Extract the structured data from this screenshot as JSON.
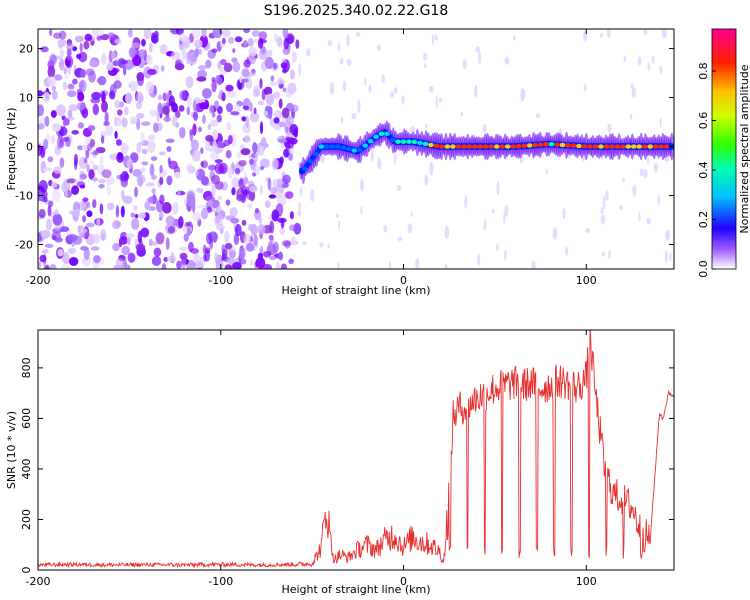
{
  "title": "S196.2025.340.02.22.G18",
  "chart_data": [
    {
      "type": "heatmap",
      "name": "spectrogram",
      "xlabel": "Height of straight line (km)",
      "ylabel": "Frequency (Hz)",
      "xlim": [
        -200,
        148
      ],
      "ylim": [
        -25,
        24
      ],
      "xticks": [
        -200,
        -100,
        0,
        100
      ],
      "xtick_labels": [
        "-200",
        "-100",
        "0",
        "100"
      ],
      "yticks": [
        20,
        10,
        0,
        -10,
        -20
      ],
      "ytick_labels": [
        "20",
        "10",
        "0",
        "-10",
        "-20"
      ],
      "colorbar": {
        "label": "Normalized spectral amplitude",
        "range": [
          0,
          0.97
        ],
        "ticks": [
          0,
          0.2,
          0.4,
          0.6,
          0.8
        ],
        "tick_labels": [
          "0.0",
          "0.2",
          "0.4",
          "0.6",
          "0.8"
        ],
        "colormap": [
          "#ffffff",
          "#8a00ff",
          "#0000ff",
          "#00ffff",
          "#00ff00",
          "#ffff00",
          "#ff8000",
          "#ff0000",
          "#ff0080"
        ]
      },
      "features": [
        {
          "label": "noise region",
          "x_range": [
            -200,
            -58
          ],
          "freq_range": [
            -25,
            24
          ],
          "amplitude": 0.12
        },
        {
          "label": "signal ridge",
          "x": [
            -55,
            -45,
            -35,
            -25,
            -15,
            -10,
            -5,
            5,
            20,
            40,
            60,
            80,
            100,
            120,
            145
          ],
          "freq": [
            -5,
            0,
            0,
            -1,
            2,
            3,
            1,
            1,
            0,
            0,
            0,
            0.5,
            0,
            0,
            0
          ],
          "amplitude": [
            0.3,
            0.35,
            0.35,
            0.4,
            0.45,
            0.5,
            0.45,
            0.6,
            0.75,
            0.9,
            0.9,
            0.8,
            0.9,
            0.9,
            0.9
          ]
        }
      ]
    },
    {
      "type": "line",
      "name": "snr",
      "xlabel": "Height of straight line (km)",
      "ylabel": "SNR (10 * v/v)",
      "xlim": [
        -200,
        148
      ],
      "ylim": [
        0,
        950
      ],
      "xticks": [
        -200,
        -100,
        0,
        100
      ],
      "xtick_labels": [
        "-200",
        "-100",
        "0",
        "100"
      ],
      "yticks": [
        0,
        200,
        400,
        600,
        800
      ],
      "ytick_labels": [
        "0",
        "200",
        "400",
        "600",
        "800"
      ],
      "color": "#e83030",
      "series": [
        {
          "name": "SNR",
          "x": [
            -200,
            -180,
            -160,
            -140,
            -120,
            -100,
            -80,
            -60,
            -50,
            -45,
            -42,
            -40,
            -38,
            -35,
            -30,
            -25,
            -20,
            -15,
            -10,
            -5,
            0,
            5,
            10,
            15,
            20,
            22,
            25,
            27,
            30,
            35,
            40,
            45,
            50,
            55,
            60,
            65,
            70,
            75,
            80,
            85,
            90,
            95,
            100,
            102,
            105,
            110,
            115,
            120,
            125,
            130,
            135,
            140,
            142,
            145,
            148
          ],
          "y": [
            20,
            22,
            20,
            21,
            20,
            22,
            20,
            22,
            25,
            90,
            260,
            120,
            40,
            60,
            50,
            80,
            100,
            80,
            120,
            140,
            90,
            130,
            110,
            100,
            70,
            30,
            300,
            600,
            640,
            650,
            680,
            700,
            720,
            730,
            740,
            730,
            740,
            720,
            730,
            750,
            740,
            720,
            760,
            930,
            700,
            400,
            300,
            280,
            250,
            150,
            120,
            620,
            600,
            700,
            690
          ]
        }
      ]
    }
  ]
}
